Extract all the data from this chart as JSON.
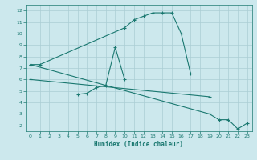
{
  "title": "",
  "xlabel": "Humidex (Indice chaleur)",
  "bg_color": "#cce8ed",
  "grid_color": "#aacdd4",
  "line_color": "#1a7870",
  "spine_color": "#1a7870",
  "xlim": [
    -0.5,
    23.5
  ],
  "ylim": [
    1.5,
    12.5
  ],
  "xticks": [
    0,
    1,
    2,
    3,
    4,
    5,
    6,
    7,
    8,
    9,
    10,
    11,
    12,
    13,
    14,
    15,
    16,
    17,
    18,
    19,
    20,
    21,
    22,
    23
  ],
  "yticks": [
    2,
    3,
    4,
    5,
    6,
    7,
    8,
    9,
    10,
    11,
    12
  ],
  "series1_x": [
    0,
    1,
    10,
    11,
    12,
    13,
    14,
    15,
    16,
    17
  ],
  "series1_y": [
    7.3,
    7.3,
    10.5,
    11.2,
    11.5,
    11.8,
    11.8,
    11.8,
    10.0,
    6.5
  ],
  "series2_x": [
    5,
    6,
    7,
    8,
    9,
    10
  ],
  "series2_y": [
    4.7,
    4.8,
    5.3,
    5.5,
    8.8,
    6.0
  ],
  "series3_x": [
    0,
    19,
    20,
    21,
    22,
    23
  ],
  "series3_y": [
    7.3,
    3.0,
    2.5,
    2.5,
    1.7,
    2.2
  ],
  "series4_x": [
    0,
    19
  ],
  "series4_y": [
    6.0,
    4.5
  ],
  "xlabel_fontsize": 5.5,
  "tick_fontsize": 4.5,
  "linewidth": 0.8,
  "markersize": 2.5,
  "markeredgewidth": 0.8
}
